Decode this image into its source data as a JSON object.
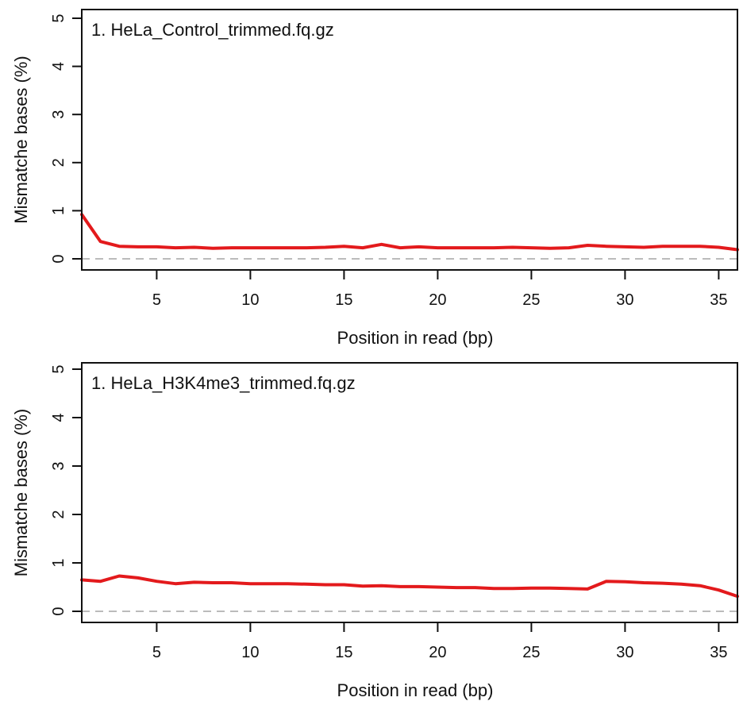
{
  "chart_data": [
    {
      "type": "line",
      "title": "1. HeLa_Control_trimmed.fq.gz",
      "xlabel": "Position in read (bp)",
      "ylabel": "Mismatche bases (%)",
      "xlim": [
        1,
        36
      ],
      "ylim": [
        0,
        5
      ],
      "xticks": [
        "5",
        "10",
        "15",
        "20",
        "25",
        "30",
        "35"
      ],
      "yticks": [
        "0",
        "1",
        "2",
        "3",
        "4",
        "5"
      ],
      "reference_line": 0,
      "line_color": "#e31a1c",
      "reference_color": "#bbbbbb",
      "series": [
        {
          "x": [
            1,
            2,
            3,
            4,
            5,
            6,
            7,
            8,
            9,
            10,
            11,
            12,
            13,
            14,
            15,
            16,
            17,
            18,
            19,
            20,
            21,
            22,
            23,
            24,
            25,
            26,
            27,
            28,
            29,
            30,
            31,
            32,
            33,
            34,
            35,
            36
          ],
          "values": [
            0.92,
            0.36,
            0.26,
            0.25,
            0.25,
            0.23,
            0.24,
            0.22,
            0.23,
            0.23,
            0.23,
            0.23,
            0.23,
            0.24,
            0.26,
            0.23,
            0.3,
            0.23,
            0.25,
            0.23,
            0.23,
            0.23,
            0.23,
            0.24,
            0.23,
            0.22,
            0.23,
            0.28,
            0.26,
            0.25,
            0.24,
            0.26,
            0.26,
            0.26,
            0.24,
            0.19
          ]
        }
      ]
    },
    {
      "type": "line",
      "title": "1. HeLa_H3K4me3_trimmed.fq.gz",
      "xlabel": "Position in read (bp)",
      "ylabel": "Mismatche bases (%)",
      "xlim": [
        1,
        36
      ],
      "ylim": [
        0,
        5
      ],
      "xticks": [
        "5",
        "10",
        "15",
        "20",
        "25",
        "30",
        "35"
      ],
      "yticks": [
        "0",
        "1",
        "2",
        "3",
        "4",
        "5"
      ],
      "reference_line": 0,
      "line_color": "#e31a1c",
      "reference_color": "#bbbbbb",
      "series": [
        {
          "x": [
            1,
            2,
            3,
            4,
            5,
            6,
            7,
            8,
            9,
            10,
            11,
            12,
            13,
            14,
            15,
            16,
            17,
            18,
            19,
            20,
            21,
            22,
            23,
            24,
            25,
            26,
            27,
            28,
            29,
            30,
            31,
            32,
            33,
            34,
            35,
            36
          ],
          "values": [
            0.65,
            0.62,
            0.73,
            0.69,
            0.62,
            0.57,
            0.6,
            0.59,
            0.59,
            0.57,
            0.57,
            0.57,
            0.56,
            0.55,
            0.55,
            0.52,
            0.53,
            0.51,
            0.51,
            0.5,
            0.49,
            0.49,
            0.47,
            0.47,
            0.48,
            0.48,
            0.47,
            0.46,
            0.62,
            0.61,
            0.59,
            0.58,
            0.56,
            0.53,
            0.44,
            0.31
          ]
        }
      ]
    }
  ]
}
